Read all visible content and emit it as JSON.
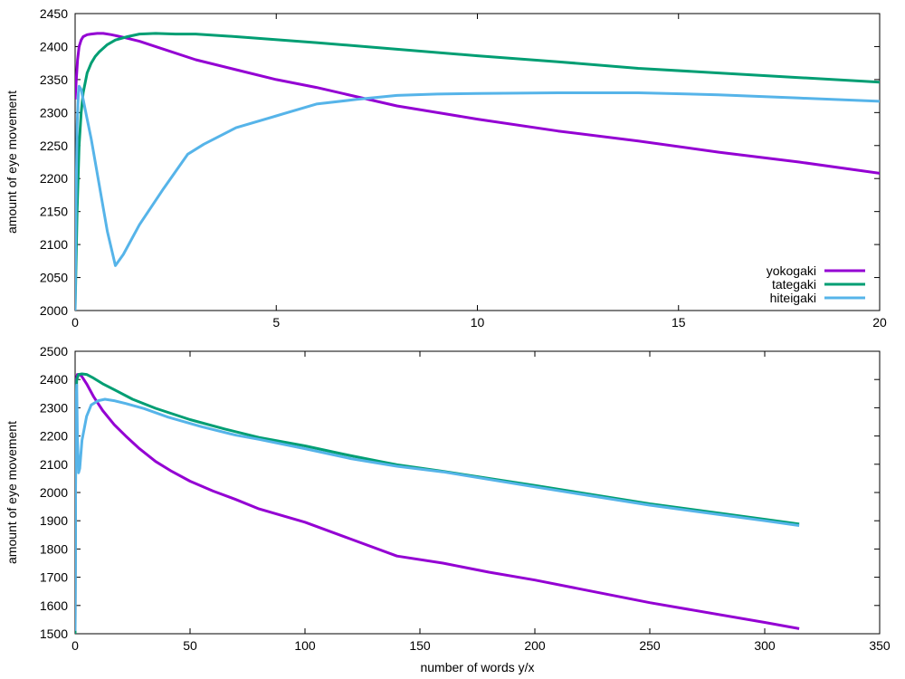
{
  "chart_data": [
    {
      "type": "line",
      "title": "",
      "xlabel": "",
      "ylabel": "amount of eye movement",
      "xlim": [
        0,
        20
      ],
      "ylim": [
        2000,
        2450
      ],
      "xticks": [
        0,
        5,
        10,
        15,
        20
      ],
      "yticks": [
        2000,
        2050,
        2100,
        2150,
        2200,
        2250,
        2300,
        2350,
        2400,
        2450
      ],
      "grid": false,
      "legend": "bottom-right",
      "series": [
        {
          "name": "yokogaki",
          "color": "#9400D3",
          "x": [
            0.0,
            0.03,
            0.06,
            0.1,
            0.15,
            0.2,
            0.3,
            0.4,
            0.55,
            0.7,
            0.9,
            1.2,
            1.6,
            2.0,
            3.0,
            4.0,
            5.0,
            6.0,
            8.0,
            10.0,
            12.0,
            14.0,
            16.0,
            18.0,
            20.0
          ],
          "y": [
            2320,
            2350,
            2380,
            2400,
            2410,
            2415,
            2418,
            2419,
            2420,
            2420,
            2418,
            2414,
            2408,
            2400,
            2380,
            2365,
            2350,
            2338,
            2310,
            2290,
            2272,
            2257,
            2240,
            2225,
            2208
          ]
        },
        {
          "name": "tategaki",
          "color": "#009E73",
          "x": [
            0.0,
            0.05,
            0.1,
            0.15,
            0.2,
            0.3,
            0.4,
            0.5,
            0.6,
            0.8,
            1.0,
            1.3,
            1.6,
            2.0,
            2.5,
            3.0,
            4.0,
            6.0,
            8.0,
            10.0,
            12.0,
            14.0,
            16.0,
            18.0,
            20.0
          ],
          "y": [
            2000,
            2150,
            2250,
            2300,
            2330,
            2360,
            2375,
            2385,
            2392,
            2403,
            2410,
            2415,
            2419,
            2420,
            2419,
            2419,
            2415,
            2406,
            2396,
            2386,
            2377,
            2367,
            2360,
            2353,
            2346
          ]
        },
        {
          "name": "hiteigaki",
          "color": "#56B4E9",
          "x": [
            0.0,
            0.02,
            0.05,
            0.08,
            0.1,
            0.15,
            0.2,
            0.3,
            0.4,
            0.6,
            0.8,
            1.0,
            1.2,
            1.6,
            2.2,
            2.8,
            3.2,
            4.0,
            5.0,
            6.0,
            7.0,
            8.0,
            9.0,
            10.0,
            12.0,
            14.0,
            16.0,
            18.0,
            20.0
          ],
          "y": [
            2000,
            2150,
            2280,
            2330,
            2340,
            2335,
            2320,
            2290,
            2260,
            2190,
            2120,
            2068,
            2085,
            2130,
            2185,
            2237,
            2252,
            2277,
            2295,
            2313,
            2320,
            2326,
            2328,
            2329,
            2330,
            2330,
            2327,
            2322,
            2317
          ]
        }
      ]
    },
    {
      "type": "line",
      "title": "",
      "xlabel": "number of words y/x",
      "ylabel": "amount of eye movement",
      "xlim": [
        0,
        350
      ],
      "ylim": [
        1500,
        2500
      ],
      "xticks": [
        0,
        50,
        100,
        150,
        200,
        250,
        300,
        350
      ],
      "yticks": [
        1500,
        1600,
        1700,
        1800,
        1900,
        2000,
        2100,
        2200,
        2300,
        2400,
        2500
      ],
      "grid": false,
      "legend": "none",
      "series": [
        {
          "name": "yokogaki",
          "color": "#9400D3",
          "x": [
            0,
            0.2,
            0.5,
            1,
            2,
            3,
            5,
            8,
            12,
            17,
            22,
            28,
            35,
            42,
            50,
            60,
            70,
            80,
            100,
            120,
            140,
            160,
            180,
            200,
            250,
            300,
            315
          ],
          "y": [
            1520,
            2300,
            2400,
            2418,
            2418,
            2410,
            2385,
            2340,
            2290,
            2240,
            2200,
            2155,
            2110,
            2075,
            2040,
            2005,
            1975,
            1942,
            1895,
            1835,
            1775,
            1750,
            1718,
            1690,
            1610,
            1540,
            1518
          ]
        },
        {
          "name": "tategaki",
          "color": "#009E73",
          "x": [
            0,
            0.3,
            0.7,
            1.5,
            3,
            5,
            8,
            12,
            18,
            25,
            35,
            50,
            65,
            80,
            100,
            120,
            140,
            160,
            200,
            250,
            300,
            315
          ],
          "y": [
            1500,
            2300,
            2400,
            2418,
            2420,
            2418,
            2405,
            2385,
            2360,
            2330,
            2298,
            2258,
            2225,
            2195,
            2165,
            2130,
            2098,
            2075,
            2025,
            1960,
            1905,
            1888
          ]
        },
        {
          "name": "hiteigaki",
          "color": "#56B4E9",
          "x": [
            0,
            0.3,
            0.7,
            1.0,
            1.5,
            2,
            3,
            5,
            7,
            10,
            13,
            17,
            22,
            30,
            40,
            55,
            70,
            80,
            100,
            120,
            140,
            160,
            200,
            250,
            300,
            315
          ],
          "y": [
            1510,
            2300,
            2380,
            2200,
            2070,
            2085,
            2185,
            2270,
            2310,
            2325,
            2330,
            2325,
            2315,
            2297,
            2268,
            2233,
            2203,
            2188,
            2155,
            2120,
            2093,
            2073,
            2020,
            1955,
            1900,
            1883
          ]
        }
      ]
    }
  ]
}
